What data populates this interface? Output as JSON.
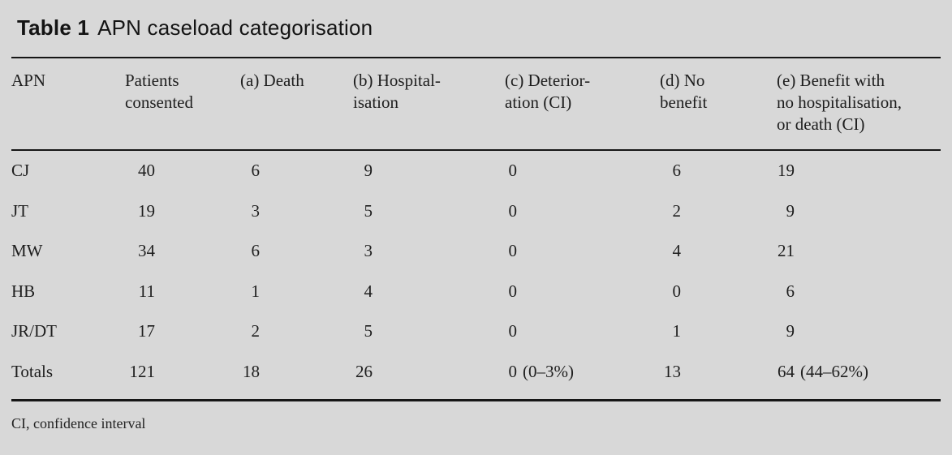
{
  "page": {
    "background_color": "#d8d8d8",
    "rule_color": "#161616",
    "text_color": "#1e1e1e"
  },
  "table": {
    "label": "Table 1",
    "title": "APN caseload categorisation",
    "columns": [
      {
        "key": "apn",
        "header": "APN"
      },
      {
        "key": "patients",
        "header": "Patients\nconsented"
      },
      {
        "key": "death",
        "header": "(a) Death"
      },
      {
        "key": "hospitalisation",
        "header": "(b) Hospital-\nisation"
      },
      {
        "key": "deterioration",
        "header": "(c) Deterior-\nation (CI)"
      },
      {
        "key": "no_benefit",
        "header": "(d) No\nbenefit"
      },
      {
        "key": "benefit",
        "header": "(e) Benefit with\nno hospitalisation,\nor death (CI)"
      }
    ],
    "rows": [
      {
        "apn": "CJ",
        "patients": "40",
        "death": "6",
        "hospitalisation": "9",
        "deterioration": "0",
        "deterioration_ci": "",
        "no_benefit": "6",
        "benefit": "19",
        "benefit_ci": ""
      },
      {
        "apn": "JT",
        "patients": "19",
        "death": "3",
        "hospitalisation": "5",
        "deterioration": "0",
        "deterioration_ci": "",
        "no_benefit": "2",
        "benefit": "9",
        "benefit_ci": ""
      },
      {
        "apn": "MW",
        "patients": "34",
        "death": "6",
        "hospitalisation": "3",
        "deterioration": "0",
        "deterioration_ci": "",
        "no_benefit": "4",
        "benefit": "21",
        "benefit_ci": ""
      },
      {
        "apn": "HB",
        "patients": "11",
        "death": "1",
        "hospitalisation": "4",
        "deterioration": "0",
        "deterioration_ci": "",
        "no_benefit": "0",
        "benefit": "6",
        "benefit_ci": ""
      },
      {
        "apn": "JR/DT",
        "patients": "17",
        "death": "2",
        "hospitalisation": "5",
        "deterioration": "0",
        "deterioration_ci": "",
        "no_benefit": "1",
        "benefit": "9",
        "benefit_ci": ""
      },
      {
        "apn": "Totals",
        "patients": "121",
        "death": "18",
        "hospitalisation": "26",
        "deterioration": "0",
        "deterioration_ci": "(0–3%)",
        "no_benefit": "13",
        "benefit": "64",
        "benefit_ci": "(44–62%)"
      }
    ],
    "footnote": "CI, confidence interval"
  }
}
